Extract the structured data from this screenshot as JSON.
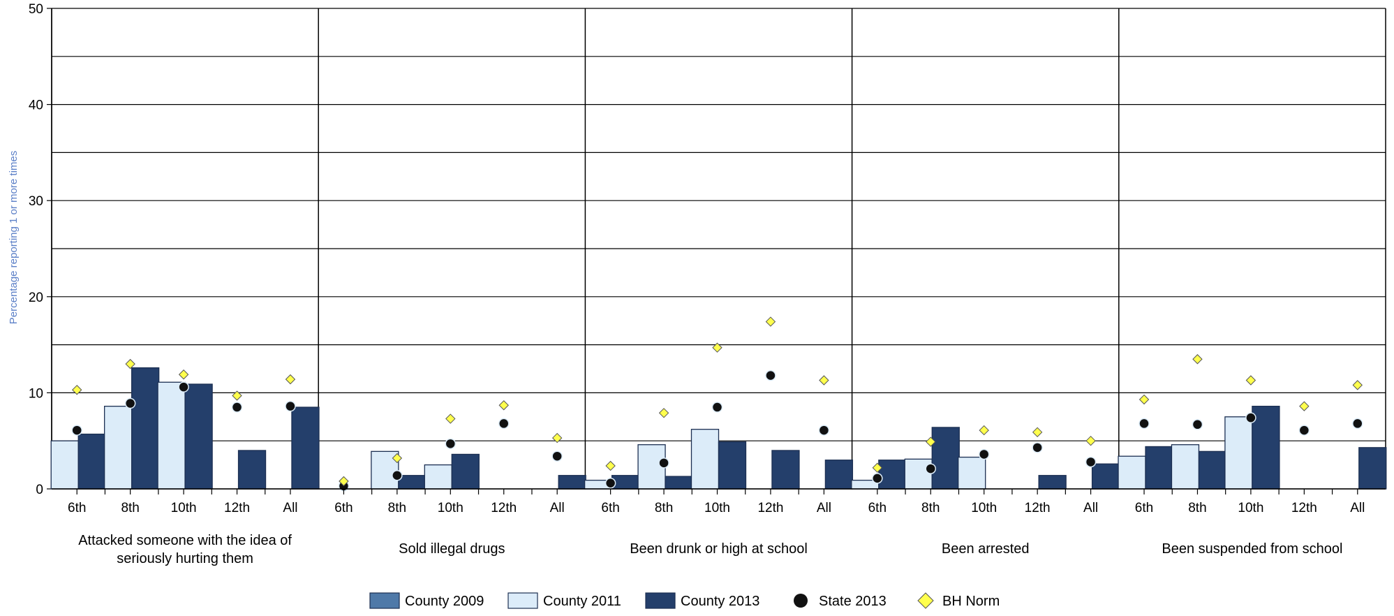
{
  "chart_data": {
    "type": "bar",
    "ylabel": "Percentage reporting 1 or more times",
    "ylim": [
      0,
      50
    ],
    "yticks": [
      0,
      10,
      20,
      30,
      40,
      50
    ],
    "grid": true,
    "legend_position": "bottom",
    "grade_labels": [
      "6th",
      "8th",
      "10th",
      "12th",
      "All"
    ],
    "colors": {
      "County 2009": "#4f79a8",
      "County 2011": "#dcecf9",
      "County 2013": "#243f6b",
      "State 2013": "#111111",
      "BH Norm": "#ffff4d"
    },
    "groups": [
      {
        "label_lines": [
          "Attacked someone with the idea of",
          "seriously hurting them"
        ],
        "county2009": [
          null,
          null,
          null,
          null,
          null
        ],
        "county2011": [
          5.0,
          8.6,
          11.1,
          null,
          null
        ],
        "county2013": [
          5.7,
          12.6,
          10.9,
          4.0,
          8.5
        ],
        "state2013": [
          6.1,
          8.9,
          10.6,
          8.5,
          8.6
        ],
        "bh_norm": [
          10.3,
          13.0,
          11.9,
          9.7,
          11.4
        ]
      },
      {
        "label_lines": [
          "Sold illegal drugs"
        ],
        "county2009": [
          null,
          null,
          null,
          null,
          null
        ],
        "county2011": [
          null,
          3.9,
          2.5,
          null,
          null
        ],
        "county2013": [
          null,
          1.4,
          3.6,
          null,
          1.4
        ],
        "state2013": [
          0.3,
          1.4,
          4.7,
          6.8,
          3.4
        ],
        "bh_norm": [
          0.8,
          3.2,
          7.3,
          8.7,
          5.3
        ]
      },
      {
        "label_lines": [
          "Been drunk or high at school"
        ],
        "county2009": [
          null,
          null,
          null,
          null,
          null
        ],
        "county2011": [
          0.9,
          4.6,
          6.2,
          null,
          null
        ],
        "county2013": [
          1.4,
          1.3,
          4.9,
          4.0,
          3.0
        ],
        "state2013": [
          0.6,
          2.7,
          8.5,
          11.8,
          6.1
        ],
        "bh_norm": [
          2.4,
          7.9,
          14.7,
          17.4,
          11.3
        ]
      },
      {
        "label_lines": [
          "Been arrested"
        ],
        "county2009": [
          null,
          null,
          null,
          null,
          null
        ],
        "county2011": [
          0.9,
          3.1,
          3.3,
          null,
          null
        ],
        "county2013": [
          3.0,
          6.4,
          null,
          1.4,
          2.6
        ],
        "state2013": [
          1.1,
          2.1,
          3.6,
          4.3,
          2.8
        ],
        "bh_norm": [
          2.2,
          4.9,
          6.1,
          5.9,
          5.0
        ]
      },
      {
        "label_lines": [
          "Been suspended from school"
        ],
        "county2009": [
          null,
          null,
          null,
          null,
          null
        ],
        "county2011": [
          3.4,
          4.6,
          7.5,
          null,
          null
        ],
        "county2013": [
          4.4,
          3.9,
          8.6,
          null,
          4.3
        ],
        "state2013": [
          6.8,
          6.7,
          7.4,
          6.1,
          6.8
        ],
        "bh_norm": [
          9.3,
          13.5,
          11.3,
          8.6,
          10.8
        ]
      }
    ],
    "legend": [
      "County 2009",
      "County 2011",
      "County 2013",
      "State 2013",
      "BH Norm"
    ]
  }
}
